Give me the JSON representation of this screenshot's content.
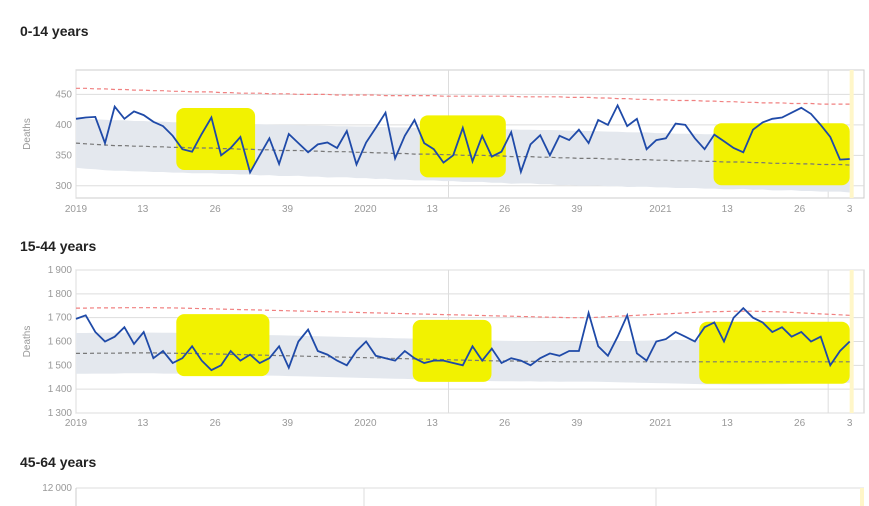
{
  "panels": [
    {
      "title": "0-14 years"
    },
    {
      "title": "15-44 years"
    },
    {
      "title": "45-64 years"
    }
  ],
  "colors": {
    "observed": "#1f4aa8",
    "observed_highlight": "#1d4a1d",
    "baseline": "#777777",
    "upper_threshold": "#f08080",
    "band": "#e4e8ee",
    "highlight": "#f2f200",
    "gridline": "#dddddd",
    "current_week": "#fff6c8"
  },
  "chart_data": [
    {
      "type": "line",
      "title": "0-14 years",
      "ylabel": "Deaths",
      "ylim": [
        280,
        490
      ],
      "yticks": [
        300,
        350,
        400,
        450
      ],
      "xticks": [
        "2019",
        "13",
        "26",
        "39",
        "2020",
        "13",
        "26",
        "39",
        "2021",
        "13",
        "26",
        "3"
      ],
      "x_range": [
        0,
        110
      ],
      "year_boundaries": [
        0,
        52,
        105
      ],
      "highlight_ranges": [
        [
          14,
          25
        ],
        [
          48,
          60
        ],
        [
          89,
          108
        ]
      ],
      "series": [
        {
          "role": "observed",
          "values": [
            410,
            412,
            413,
            370,
            430,
            410,
            422,
            416,
            405,
            398,
            382,
            360,
            356,
            385,
            412,
            350,
            362,
            380,
            322,
            350,
            378,
            336,
            385,
            370,
            355,
            368,
            371,
            362,
            390,
            335,
            371,
            395,
            420,
            345,
            382,
            408,
            370,
            360,
            338,
            350,
            395,
            340,
            382,
            348,
            356,
            388,
            323,
            368,
            383,
            350,
            382,
            375,
            392,
            370,
            408,
            400,
            432,
            398,
            410,
            360,
            375,
            378,
            402,
            400,
            378,
            360,
            384,
            373,
            362,
            355,
            392,
            404,
            410,
            412,
            420,
            428,
            418,
            400,
            380,
            343,
            344
          ]
        },
        {
          "role": "baseline",
          "values": [
            370,
            369,
            368,
            367,
            366,
            366,
            365,
            365,
            364,
            364,
            363,
            363,
            362,
            362,
            362,
            361,
            361,
            360,
            360,
            359,
            359,
            358,
            358,
            358,
            357,
            357,
            356,
            356,
            356,
            355,
            355,
            354,
            354,
            353,
            353,
            352,
            352,
            352,
            351,
            351,
            350,
            350,
            350,
            349,
            349,
            348,
            348,
            348,
            347,
            347,
            346,
            346,
            345,
            345,
            345,
            344,
            344,
            343,
            343,
            343,
            342,
            342,
            341,
            341,
            341,
            340,
            340,
            339,
            339,
            339,
            338,
            338,
            337,
            337,
            337,
            336,
            336,
            335,
            335,
            335,
            334
          ]
        },
        {
          "role": "upper",
          "values": [
            460,
            460,
            459,
            459,
            458,
            458,
            457,
            457,
            456,
            456,
            455,
            455,
            454,
            454,
            454,
            453,
            453,
            452,
            452,
            452,
            451,
            451,
            451,
            450,
            450,
            450,
            450,
            449,
            449,
            449,
            449,
            449,
            448,
            448,
            448,
            448,
            448,
            448,
            447,
            447,
            447,
            447,
            447,
            447,
            447,
            447,
            446,
            446,
            446,
            446,
            446,
            445,
            445,
            445,
            444,
            444,
            443,
            443,
            442,
            442,
            441,
            441,
            440,
            440,
            440,
            439,
            439,
            438,
            438,
            437,
            437,
            436,
            436,
            436,
            435,
            435,
            435,
            434,
            434,
            434,
            434
          ]
        }
      ]
    },
    {
      "type": "line",
      "title": "15-44 years",
      "ylabel": "Deaths",
      "ylim": [
        1300,
        1900
      ],
      "yticks": [
        1300,
        1400,
        1500,
        1600,
        1700,
        1800,
        1900
      ],
      "xticks": [
        "2019",
        "13",
        "26",
        "39",
        "2020",
        "13",
        "26",
        "39",
        "2021",
        "13",
        "26",
        "3"
      ],
      "x_range": [
        0,
        110
      ],
      "year_boundaries": [
        0,
        52,
        105
      ],
      "highlight_ranges": [
        [
          14,
          27
        ],
        [
          47,
          58
        ],
        [
          87,
          108
        ]
      ],
      "series": [
        {
          "role": "observed",
          "values": [
            1695,
            1710,
            1640,
            1600,
            1620,
            1660,
            1590,
            1640,
            1530,
            1560,
            1510,
            1530,
            1580,
            1520,
            1480,
            1500,
            1560,
            1520,
            1545,
            1510,
            1530,
            1580,
            1490,
            1600,
            1650,
            1560,
            1545,
            1520,
            1500,
            1560,
            1600,
            1540,
            1530,
            1520,
            1560,
            1530,
            1510,
            1520,
            1520,
            1510,
            1500,
            1580,
            1520,
            1570,
            1510,
            1530,
            1520,
            1500,
            1530,
            1550,
            1540,
            1560,
            1560,
            1720,
            1580,
            1540,
            1620,
            1710,
            1550,
            1520,
            1600,
            1610,
            1640,
            1620,
            1600,
            1660,
            1680,
            1600,
            1700,
            1740,
            1700,
            1680,
            1640,
            1660,
            1620,
            1640,
            1600,
            1620,
            1500,
            1560,
            1600
          ]
        },
        {
          "role": "baseline",
          "values": [
            1550,
            1550,
            1551,
            1551,
            1551,
            1552,
            1552,
            1552,
            1552,
            1551,
            1551,
            1550,
            1550,
            1549,
            1548,
            1547,
            1546,
            1545,
            1544,
            1543,
            1542,
            1541,
            1540,
            1539,
            1538,
            1537,
            1536,
            1535,
            1534,
            1533,
            1532,
            1531,
            1530,
            1529,
            1528,
            1527,
            1526,
            1525,
            1524,
            1523,
            1522,
            1521,
            1520,
            1519,
            1518,
            1518,
            1517,
            1517,
            1516,
            1516,
            1515,
            1515,
            1515,
            1515,
            1515,
            1515,
            1515,
            1515,
            1515,
            1515,
            1515,
            1515,
            1515,
            1515,
            1515,
            1515,
            1515,
            1515,
            1515,
            1515,
            1515,
            1515,
            1515,
            1515,
            1515,
            1515,
            1515,
            1515,
            1515,
            1515,
            1515
          ]
        },
        {
          "role": "upper",
          "values": [
            1740,
            1740,
            1741,
            1741,
            1741,
            1742,
            1742,
            1742,
            1742,
            1741,
            1741,
            1740,
            1739,
            1738,
            1737,
            1736,
            1735,
            1734,
            1733,
            1732,
            1731,
            1730,
            1729,
            1728,
            1727,
            1726,
            1725,
            1724,
            1723,
            1722,
            1721,
            1720,
            1719,
            1718,
            1717,
            1716,
            1715,
            1714,
            1713,
            1712,
            1711,
            1710,
            1709,
            1708,
            1707,
            1706,
            1705,
            1704,
            1703,
            1702,
            1701,
            1700,
            1700,
            1700,
            1702,
            1704,
            1706,
            1708,
            1710,
            1712,
            1714,
            1716,
            1718,
            1720,
            1722,
            1724,
            1725,
            1726,
            1727,
            1727,
            1727,
            1726,
            1725,
            1724,
            1722,
            1720,
            1718,
            1716,
            1714,
            1712,
            1710
          ]
        }
      ]
    },
    {
      "type": "line",
      "title": "45-64 years",
      "ylabel": "",
      "yticks": [
        12000
      ],
      "series": []
    }
  ]
}
